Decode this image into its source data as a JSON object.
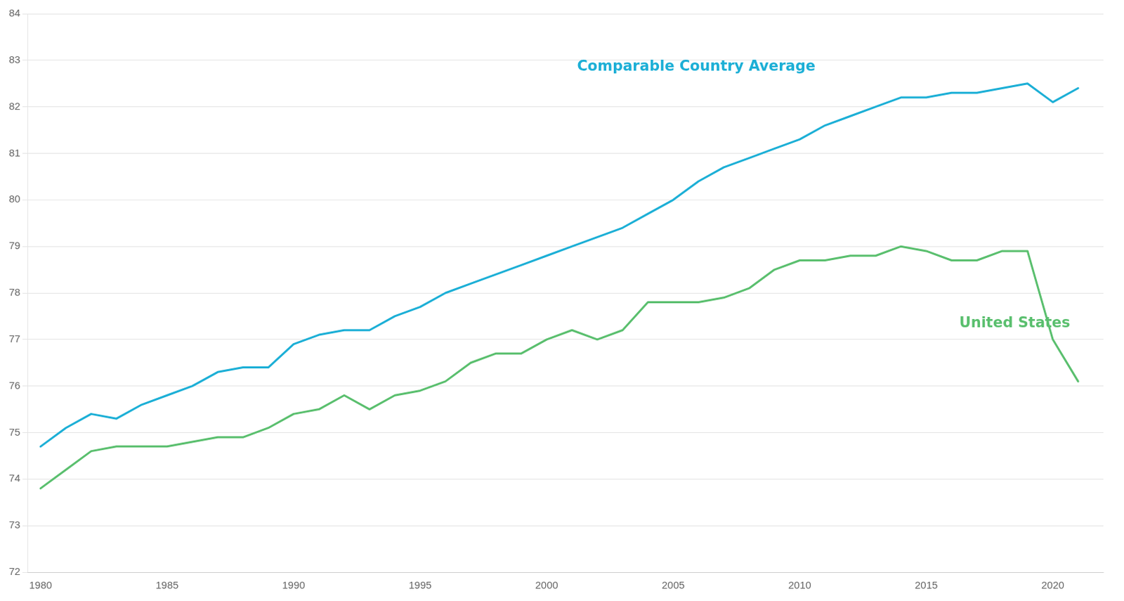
{
  "chart_data": {
    "type": "line",
    "x": [
      1980,
      1981,
      1982,
      1983,
      1984,
      1985,
      1986,
      1987,
      1988,
      1989,
      1990,
      1991,
      1992,
      1993,
      1994,
      1995,
      1996,
      1997,
      1998,
      1999,
      2000,
      2001,
      2002,
      2003,
      2004,
      2005,
      2006,
      2007,
      2008,
      2009,
      2010,
      2011,
      2012,
      2013,
      2014,
      2015,
      2016,
      2017,
      2018,
      2019,
      2020,
      2021
    ],
    "series": [
      {
        "name": "Comparable Country Average",
        "color": "#1cafd6",
        "values": [
          74.7,
          75.1,
          75.4,
          75.3,
          75.6,
          75.8,
          76.0,
          76.3,
          76.4,
          76.4,
          76.9,
          77.1,
          77.2,
          77.2,
          77.5,
          77.7,
          78.0,
          78.2,
          78.4,
          78.6,
          78.8,
          79.0,
          79.2,
          79.4,
          79.7,
          80.0,
          80.4,
          80.7,
          80.9,
          81.1,
          81.3,
          81.6,
          81.8,
          82.0,
          82.2,
          82.2,
          82.3,
          82.3,
          82.4,
          82.5,
          82.1,
          82.4
        ]
      },
      {
        "name": "United States",
        "color": "#5abf6e",
        "values": [
          73.8,
          74.2,
          74.6,
          74.7,
          74.7,
          74.7,
          74.8,
          74.9,
          74.9,
          75.1,
          75.4,
          75.5,
          75.8,
          75.5,
          75.8,
          75.9,
          76.1,
          76.5,
          76.7,
          76.7,
          77.0,
          77.2,
          77.0,
          77.2,
          77.8,
          77.8,
          77.8,
          77.9,
          78.1,
          78.5,
          78.7,
          78.7,
          78.8,
          78.8,
          79.0,
          78.9,
          78.7,
          78.7,
          78.9,
          78.9,
          77.0,
          76.1
        ]
      }
    ],
    "annotations": [
      {
        "text": "Comparable Country Average",
        "x": 2001.2,
        "y": 82.85,
        "color": "#1cafd6"
      },
      {
        "text": "United States",
        "x": 2016.3,
        "y": 77.35,
        "color": "#5abf6e"
      }
    ],
    "xlim": [
      1979.5,
      2022.0
    ],
    "xticks": [
      1980,
      1985,
      1990,
      1995,
      2000,
      2005,
      2010,
      2015,
      2020
    ],
    "ylim": [
      72,
      84
    ],
    "yticks": [
      72,
      73,
      74,
      75,
      76,
      77,
      78,
      79,
      80,
      81,
      82,
      83,
      84
    ],
    "grid": "y"
  }
}
